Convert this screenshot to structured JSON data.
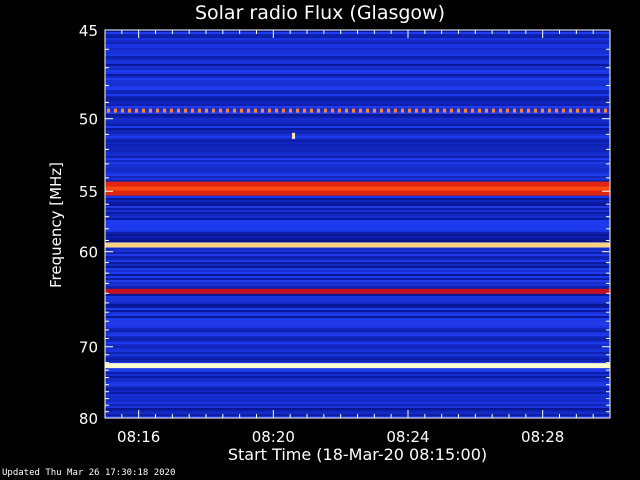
{
  "chart_data": {
    "type": "heatmap",
    "title": "Solar radio Flux (Glasgow)",
    "xlabel": "Start Time (18-Mar-20 08:15:00)",
    "ylabel": "Frequency [MHz]",
    "x_ticks": [
      "08:16",
      "08:20",
      "08:24",
      "08:28"
    ],
    "x_tick_minutes": [
      1,
      5,
      9,
      13
    ],
    "xlim_minutes": [
      0,
      15
    ],
    "y_ticks": [
      45,
      50,
      55,
      60,
      70,
      80
    ],
    "ylim_mhz": [
      45,
      80
    ],
    "y_scale": "reciprocal",
    "colormap": [
      "#000033",
      "#0a1aa0",
      "#1e3cf0",
      "#7a1070",
      "#d01010",
      "#ff5010",
      "#ffc060",
      "#ffffd0"
    ],
    "bands": [
      {
        "mhz": 49.5,
        "intensity": 0.78,
        "pattern": "dashed"
      },
      {
        "mhz": 54.8,
        "intensity": 0.62
      },
      {
        "mhz": 59.4,
        "intensity": 0.9
      },
      {
        "mhz": 63.8,
        "intensity": 0.55
      },
      {
        "mhz": 72.4,
        "intensity": 1.0
      }
    ],
    "point_events": [
      {
        "minute": 5.6,
        "mhz": 51.1,
        "intensity": 0.95
      }
    ]
  },
  "footer": "Updated Thu Mar 26 17:30:18 2020"
}
